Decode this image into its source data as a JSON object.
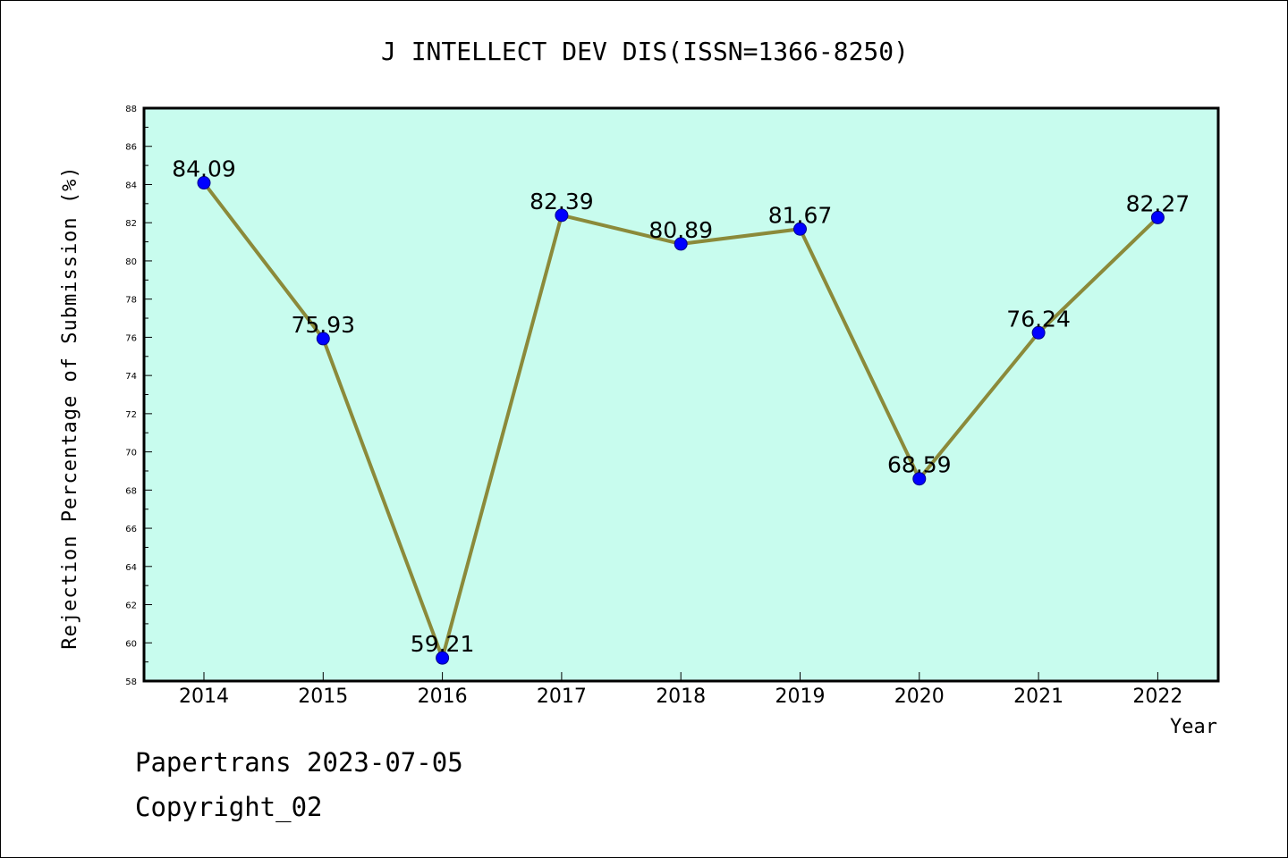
{
  "chart_data": {
    "type": "line",
    "title": "J INTELLECT DEV DIS(ISSN=1366-8250)",
    "xlabel": "Year",
    "ylabel": "Rejection Percentage of Submission (%)",
    "categories": [
      "2014",
      "2015",
      "2016",
      "2017",
      "2018",
      "2019",
      "2020",
      "2021",
      "2022"
    ],
    "values": [
      84.09,
      75.93,
      59.21,
      82.39,
      80.89,
      81.67,
      68.59,
      76.24,
      82.27
    ],
    "data_labels": [
      "84.09",
      "75.93",
      "59.21",
      "82.39",
      "80.89",
      "81.67",
      "68.59",
      "76.24",
      "82.27"
    ],
    "ylim": [
      58,
      88
    ],
    "yticks": [
      58,
      60,
      62,
      64,
      66,
      68,
      70,
      72,
      74,
      76,
      78,
      80,
      82,
      84,
      86,
      88
    ],
    "grid": false,
    "colors": {
      "plot_background": "#c8fcee",
      "line": "#8b8a3a",
      "marker": "#0000ff",
      "axis": "#000000"
    }
  },
  "footer": {
    "line1": "Papertrans 2023-07-05",
    "line2": "Copyright_02"
  }
}
